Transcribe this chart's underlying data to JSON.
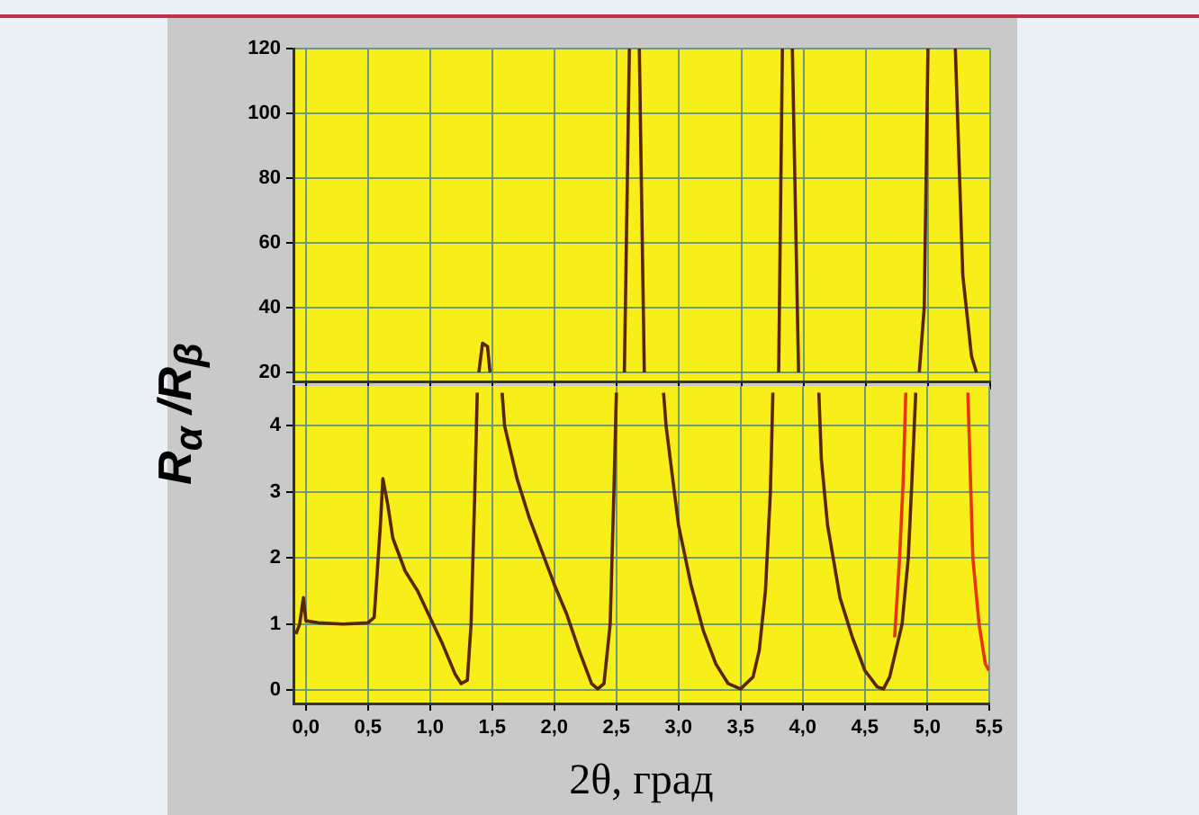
{
  "chart_data": [
    {
      "type": "line",
      "xlim": [
        -0.1,
        5.5
      ],
      "xticks": [
        0,
        0.5,
        1,
        1.5,
        2,
        2.5,
        3,
        3.5,
        4,
        4.5,
        5,
        5.5
      ],
      "ylim": [
        17,
        120
      ],
      "yticks": [
        20,
        40,
        60,
        80,
        100,
        120
      ],
      "tick_labels": "y",
      "grid": true,
      "marker": "none",
      "series": [
        {
          "color": "#5a2600",
          "x": [
            1.39,
            1.42,
            1.46,
            1.48,
            1.6,
            2.56,
            2.6,
            2.64,
            2.68,
            2.72,
            3.5,
            3.8,
            3.83,
            3.87,
            3.91,
            3.96,
            4.5,
            4.93,
            4.97,
            5.0,
            5.1,
            5.22,
            5.28,
            5.35,
            5.39
          ],
          "values": [
            20,
            29,
            28,
            20,
            null,
            20,
            120,
            null,
            120,
            20,
            null,
            20,
            120,
            null,
            120,
            20,
            null,
            20,
            40,
            120,
            null,
            120,
            50,
            25,
            20
          ]
        }
      ]
    },
    {
      "type": "line",
      "ylabel": "R$_{α}$ /R$_{β}$",
      "xlabel": "2θ, град",
      "xlim": [
        -0.1,
        5.5
      ],
      "xticks": [
        {
          "value": 0,
          "label": "0,0"
        },
        {
          "value": 0.5,
          "label": "0,5"
        },
        {
          "value": 1,
          "label": "1,0"
        },
        {
          "value": 1.5,
          "label": "1,5"
        },
        {
          "value": 2,
          "label": "2,0"
        },
        {
          "value": 2.5,
          "label": "2,5"
        },
        {
          "value": 3,
          "label": "3,0"
        },
        {
          "value": 3.5,
          "label": "3,5"
        },
        {
          "value": 4,
          "label": "4,0"
        },
        {
          "value": 4.5,
          "label": "4,5"
        },
        {
          "value": 5,
          "label": "5,0"
        },
        {
          "value": 5.5,
          "label": "5,5"
        }
      ],
      "ylim": [
        -0.2,
        4.6
      ],
      "yticks": [
        0,
        1,
        2,
        3,
        4
      ],
      "grid": true,
      "marker": "none",
      "series": [
        {
          "color": "#5a2600",
          "x": [
            -0.08,
            -0.05,
            -0.02,
            0.0,
            0.1,
            0.3,
            0.5,
            0.55,
            0.6,
            0.62,
            0.66,
            0.7,
            0.8,
            0.9,
            1.0,
            1.1,
            1.2,
            1.25,
            1.3,
            1.33,
            1.36,
            1.38,
            1.45,
            1.58,
            1.6,
            1.7,
            1.8,
            1.9,
            2.0,
            2.1,
            2.2,
            2.3,
            2.35,
            2.4,
            2.45,
            2.48,
            2.5,
            2.7,
            2.88,
            2.9,
            3.0,
            3.1,
            3.2,
            3.3,
            3.4,
            3.5,
            3.6,
            3.65,
            3.7,
            3.74,
            3.76,
            4.0,
            4.13,
            4.15,
            4.2,
            4.3,
            4.4,
            4.5,
            4.6,
            4.65,
            4.7,
            4.8,
            4.85,
            4.88,
            4.91
          ],
          "values": [
            0.85,
            1.0,
            1.4,
            1.05,
            1.02,
            1.0,
            1.02,
            1.1,
            2.5,
            3.2,
            2.8,
            2.3,
            1.8,
            1.5,
            1.1,
            0.7,
            0.25,
            0.1,
            0.15,
            1.0,
            3.0,
            4.5,
            null,
            4.5,
            4.0,
            3.2,
            2.6,
            2.1,
            1.6,
            1.15,
            0.6,
            0.1,
            0.02,
            0.1,
            1.0,
            3.0,
            4.5,
            null,
            4.5,
            4.0,
            2.5,
            1.6,
            0.9,
            0.4,
            0.1,
            0.02,
            0.2,
            0.6,
            1.5,
            3.0,
            4.5,
            null,
            4.5,
            3.5,
            2.5,
            1.4,
            0.8,
            0.3,
            0.05,
            0.02,
            0.2,
            1.0,
            2.0,
            3.2,
            4.5
          ]
        },
        {
          "color": "#e8340a",
          "x": [
            4.74,
            4.78,
            4.81,
            4.83,
            5.0,
            5.33,
            5.37,
            5.42,
            5.47,
            5.5
          ],
          "values": [
            0.8,
            2.0,
            3.2,
            4.5,
            null,
            4.5,
            2.0,
            1.0,
            0.4,
            0.3
          ]
        }
      ]
    }
  ]
}
